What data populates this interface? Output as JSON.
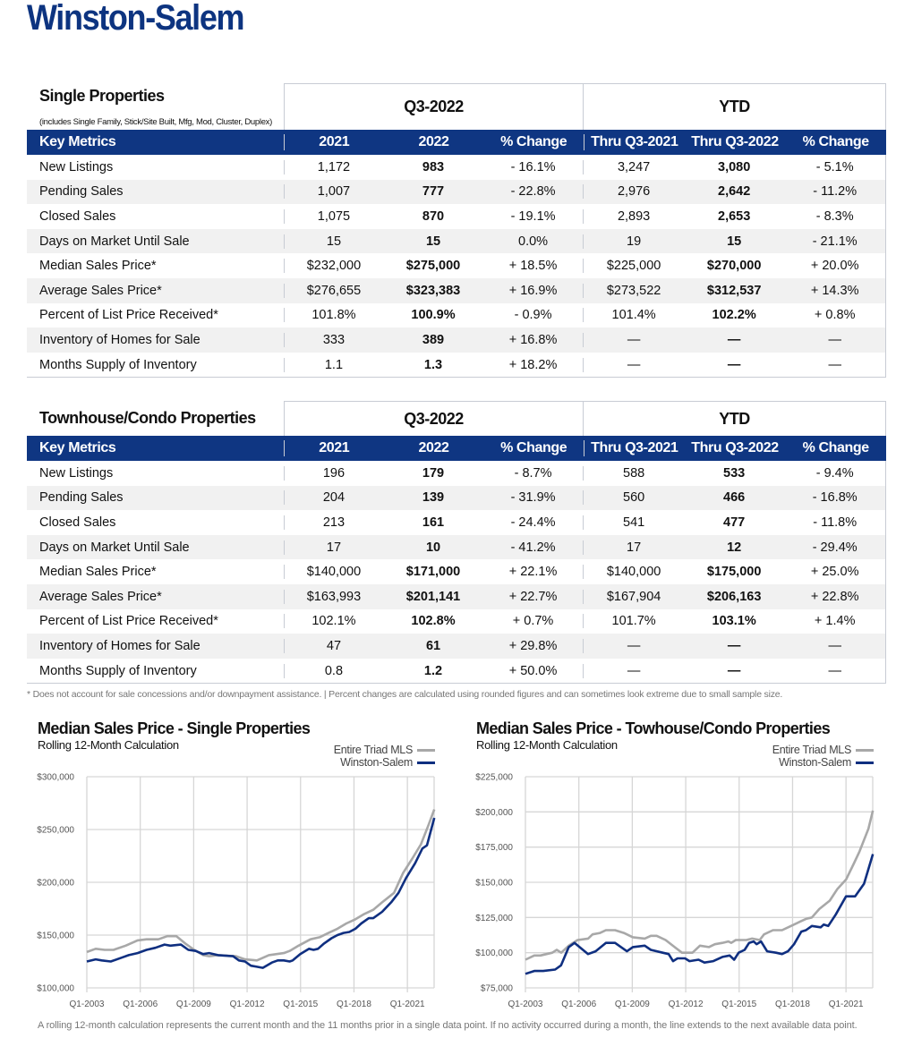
{
  "title": "Winston-Salem",
  "colors": {
    "brand": "#0f3682",
    "triad": "#a8a8a8",
    "city": "#0f2f80"
  },
  "tables": [
    {
      "name": "Single Properties",
      "subtitle": "(includes Single Family, Stick/Site Built, Mfg, Mod, Cluster, Duplex)",
      "group1": "Q3-2022",
      "group2": "YTD",
      "headers": [
        "Key Metrics",
        "2021",
        "2022",
        "% Change",
        "Thru Q3-2021",
        "Thru Q3-2022",
        "% Change"
      ],
      "rows": [
        [
          "New Listings",
          "1,172",
          "983",
          "- 16.1%",
          "3,247",
          "3,080",
          "- 5.1%"
        ],
        [
          "Pending Sales",
          "1,007",
          "777",
          "- 22.8%",
          "2,976",
          "2,642",
          "- 11.2%"
        ],
        [
          "Closed Sales",
          "1,075",
          "870",
          "- 19.1%",
          "2,893",
          "2,653",
          "- 8.3%"
        ],
        [
          "Days on Market Until Sale",
          "15",
          "15",
          "0.0%",
          "19",
          "15",
          "- 21.1%"
        ],
        [
          "Median Sales Price*",
          "$232,000",
          "$275,000",
          "+ 18.5%",
          "$225,000",
          "$270,000",
          "+ 20.0%"
        ],
        [
          "Average Sales Price*",
          "$276,655",
          "$323,383",
          "+ 16.9%",
          "$273,522",
          "$312,537",
          "+ 14.3%"
        ],
        [
          "Percent of List Price Received*",
          "101.8%",
          "100.9%",
          "- 0.9%",
          "101.4%",
          "102.2%",
          "+ 0.8%"
        ],
        [
          "Inventory of Homes for Sale",
          "333",
          "389",
          "+ 16.8%",
          "—",
          "—",
          "—"
        ],
        [
          "Months Supply of Inventory",
          "1.1",
          "1.3",
          "+ 18.2%",
          "—",
          "—",
          "—"
        ]
      ]
    },
    {
      "name": "Townhouse/Condo Properties",
      "subtitle": "",
      "group1": "Q3-2022",
      "group2": "YTD",
      "headers": [
        "Key Metrics",
        "2021",
        "2022",
        "% Change",
        "Thru Q3-2021",
        "Thru Q3-2022",
        "% Change"
      ],
      "rows": [
        [
          "New Listings",
          "196",
          "179",
          "- 8.7%",
          "588",
          "533",
          "- 9.4%"
        ],
        [
          "Pending Sales",
          "204",
          "139",
          "- 31.9%",
          "560",
          "466",
          "- 16.8%"
        ],
        [
          "Closed Sales",
          "213",
          "161",
          "- 24.4%",
          "541",
          "477",
          "- 11.8%"
        ],
        [
          "Days on Market Until Sale",
          "17",
          "10",
          "- 41.2%",
          "17",
          "12",
          "- 29.4%"
        ],
        [
          "Median Sales Price*",
          "$140,000",
          "$171,000",
          "+ 22.1%",
          "$140,000",
          "$175,000",
          "+ 25.0%"
        ],
        [
          "Average Sales Price*",
          "$163,993",
          "$201,141",
          "+ 22.7%",
          "$167,904",
          "$206,163",
          "+ 22.8%"
        ],
        [
          "Percent of List Price Received*",
          "102.1%",
          "102.8%",
          "+ 0.7%",
          "101.7%",
          "103.1%",
          "+ 1.4%"
        ],
        [
          "Inventory of Homes for Sale",
          "47",
          "61",
          "+ 29.8%",
          "—",
          "—",
          "—"
        ],
        [
          "Months Supply of Inventory",
          "0.8",
          "1.2",
          "+ 50.0%",
          "—",
          "—",
          "—"
        ]
      ]
    }
  ],
  "footnote": "* Does not account for sale concessions and/or downpayment assistance. | Percent changes are calculated using rounded figures and can sometimes look extreme due to small sample size.",
  "bottom_note": "A rolling 12-month calculation represents the current month and the 11 months prior in a single data point. If no activity occurred during a month, the line extends to the next available data point.",
  "chart_data": [
    {
      "type": "line",
      "title": "Median Sales Price - Single Properties",
      "subtitle": "Rolling 12-Month Calculation",
      "xlim": [
        2003,
        2022.5
      ],
      "ylim": [
        100000,
        300000
      ],
      "grid": true,
      "legend": "top-right",
      "xticks": [
        2003,
        2006,
        2009,
        2012,
        2015,
        2018,
        2021
      ],
      "xtick_labels": [
        "Q1-2003",
        "Q1-2006",
        "Q1-2009",
        "Q1-2012",
        "Q1-2015",
        "Q1-2018",
        "Q1-2021"
      ],
      "yticks": [
        100000,
        150000,
        200000,
        250000,
        300000
      ],
      "ytick_labels": [
        "$100,000",
        "$150,000",
        "$200,000",
        "$250,000",
        "$300,000"
      ],
      "series": [
        {
          "name": "Entire Triad MLS",
          "x": [
            2003.0,
            2003.5,
            2004.0,
            2004.5,
            2005.18,
            2005.85,
            2006.35,
            2007.02,
            2007.52,
            2008.03,
            2008.53,
            2009.03,
            2009.53,
            2009.87,
            2010.37,
            2011.38,
            2011.88,
            2012.55,
            2013.22,
            2014.06,
            2014.39,
            2014.89,
            2015.56,
            2016.07,
            2016.57,
            2017.07,
            2017.57,
            2018.08,
            2018.58,
            2019.08,
            2019.58,
            2020.25,
            2020.76,
            2021.26,
            2021.76,
            2022.18,
            2022.51
          ],
          "y": [
            134000,
            137000,
            136000,
            136000,
            140000,
            145000,
            146000,
            146000,
            149000,
            149000,
            142000,
            136000,
            131000,
            130000,
            131000,
            130000,
            127000,
            126000,
            131000,
            133000,
            135000,
            140000,
            146000,
            148000,
            152000,
            156000,
            161000,
            165000,
            170000,
            174000,
            181000,
            190000,
            209000,
            222000,
            236000,
            254000,
            269000
          ]
        },
        {
          "name": "Winston-Salem",
          "x": [
            2003.0,
            2003.5,
            2003.84,
            2004.34,
            2005.01,
            2005.35,
            2005.85,
            2006.35,
            2006.85,
            2007.36,
            2007.69,
            2008.28,
            2008.7,
            2009.11,
            2009.53,
            2009.87,
            2010.37,
            2011.21,
            2011.54,
            2011.88,
            2012.21,
            2012.55,
            2012.88,
            2013.39,
            2013.72,
            2014.06,
            2014.39,
            2014.56,
            2014.98,
            2015.48,
            2015.73,
            2015.98,
            2016.32,
            2016.74,
            2017.07,
            2017.41,
            2017.74,
            2018.08,
            2018.41,
            2018.83,
            2019.08,
            2019.58,
            2020.09,
            2020.5,
            2020.92,
            2021.43,
            2021.84,
            2022.1,
            2022.51
          ],
          "y": [
            125000,
            127000,
            126000,
            125000,
            129000,
            131000,
            133000,
            136000,
            138000,
            141000,
            140000,
            141000,
            136000,
            135000,
            132000,
            133000,
            131000,
            130000,
            126000,
            125000,
            121000,
            120000,
            119000,
            124000,
            126000,
            126000,
            125000,
            126000,
            132000,
            137000,
            136000,
            137000,
            142000,
            147000,
            150000,
            152000,
            153000,
            156000,
            161000,
            166000,
            166000,
            172000,
            181000,
            190000,
            204000,
            218000,
            232000,
            235000,
            261000
          ]
        }
      ]
    },
    {
      "type": "line",
      "title": "Median Sales Price - Towhouse/Condo Properties",
      "subtitle": "Rolling 12-Month Calculation",
      "xlim": [
        2003,
        2022.5
      ],
      "ylim": [
        75000,
        225000
      ],
      "grid": true,
      "legend": "top-right",
      "xticks": [
        2003,
        2006,
        2009,
        2012,
        2015,
        2018,
        2021
      ],
      "xtick_labels": [
        "Q1-2003",
        "Q1-2006",
        "Q1-2009",
        "Q1-2012",
        "Q1-2015",
        "Q1-2018",
        "Q1-2021"
      ],
      "yticks": [
        75000,
        100000,
        125000,
        150000,
        175000,
        200000,
        225000
      ],
      "ytick_labels": [
        "$75,000",
        "$100,000",
        "$125,000",
        "$150,000",
        "$175,000",
        "$200,000",
        "$225,000"
      ],
      "series": [
        {
          "name": "Entire Triad MLS",
          "x": [
            2003.0,
            2003.5,
            2003.84,
            2004.51,
            2004.76,
            2005.01,
            2005.43,
            2005.93,
            2006.52,
            2006.77,
            2007.19,
            2007.52,
            2008.03,
            2008.53,
            2009.03,
            2009.7,
            2010.04,
            2010.37,
            2010.87,
            2011.38,
            2011.79,
            2012.38,
            2012.8,
            2013.3,
            2013.64,
            2014.06,
            2014.39,
            2014.56,
            2014.81,
            2015.4,
            2015.73,
            2016.15,
            2016.4,
            2016.9,
            2017.41,
            2017.91,
            2018.41,
            2018.75,
            2019.08,
            2019.5,
            2020.09,
            2020.5,
            2021.0,
            2021.43,
            2021.76,
            2022.26,
            2022.51
          ],
          "y": [
            95000,
            98000,
            98000,
            100000,
            102000,
            100000,
            105000,
            109000,
            110000,
            113000,
            114000,
            116000,
            116000,
            114000,
            111000,
            110000,
            112000,
            112000,
            109000,
            104000,
            100000,
            100000,
            105000,
            104000,
            106000,
            107000,
            108000,
            107000,
            109000,
            109000,
            110000,
            109000,
            113000,
            116000,
            116000,
            119000,
            122000,
            124000,
            125000,
            131000,
            137000,
            145000,
            152000,
            163000,
            172000,
            188000,
            201000
          ]
        },
        {
          "name": "Winston-Salem",
          "x": [
            2003.0,
            2003.5,
            2004.0,
            2004.67,
            2005.0,
            2005.43,
            2005.76,
            2006.52,
            2006.94,
            2007.52,
            2008.03,
            2008.7,
            2009.03,
            2009.7,
            2010.04,
            2010.71,
            2011.04,
            2011.29,
            2011.54,
            2011.96,
            2012.21,
            2012.72,
            2013.05,
            2013.55,
            2014.06,
            2014.47,
            2014.72,
            2014.97,
            2015.31,
            2015.56,
            2015.81,
            2015.98,
            2016.23,
            2016.57,
            2017.07,
            2017.41,
            2017.74,
            2018.08,
            2018.49,
            2018.75,
            2019.08,
            2019.58,
            2019.75,
            2020.0,
            2020.42,
            2021.0,
            2021.51,
            2022.01,
            2022.51
          ],
          "y": [
            85000,
            87000,
            87000,
            88000,
            91000,
            104000,
            107000,
            99000,
            101000,
            107000,
            107000,
            101000,
            104000,
            105000,
            102000,
            100000,
            99000,
            94000,
            96000,
            96000,
            94000,
            95000,
            93000,
            94000,
            97000,
            98000,
            95000,
            100000,
            102000,
            107000,
            108000,
            106000,
            108000,
            101000,
            100000,
            99000,
            101000,
            106000,
            115000,
            116000,
            119000,
            118000,
            120000,
            119000,
            127000,
            140000,
            140000,
            149000,
            170000
          ]
        }
      ]
    }
  ]
}
